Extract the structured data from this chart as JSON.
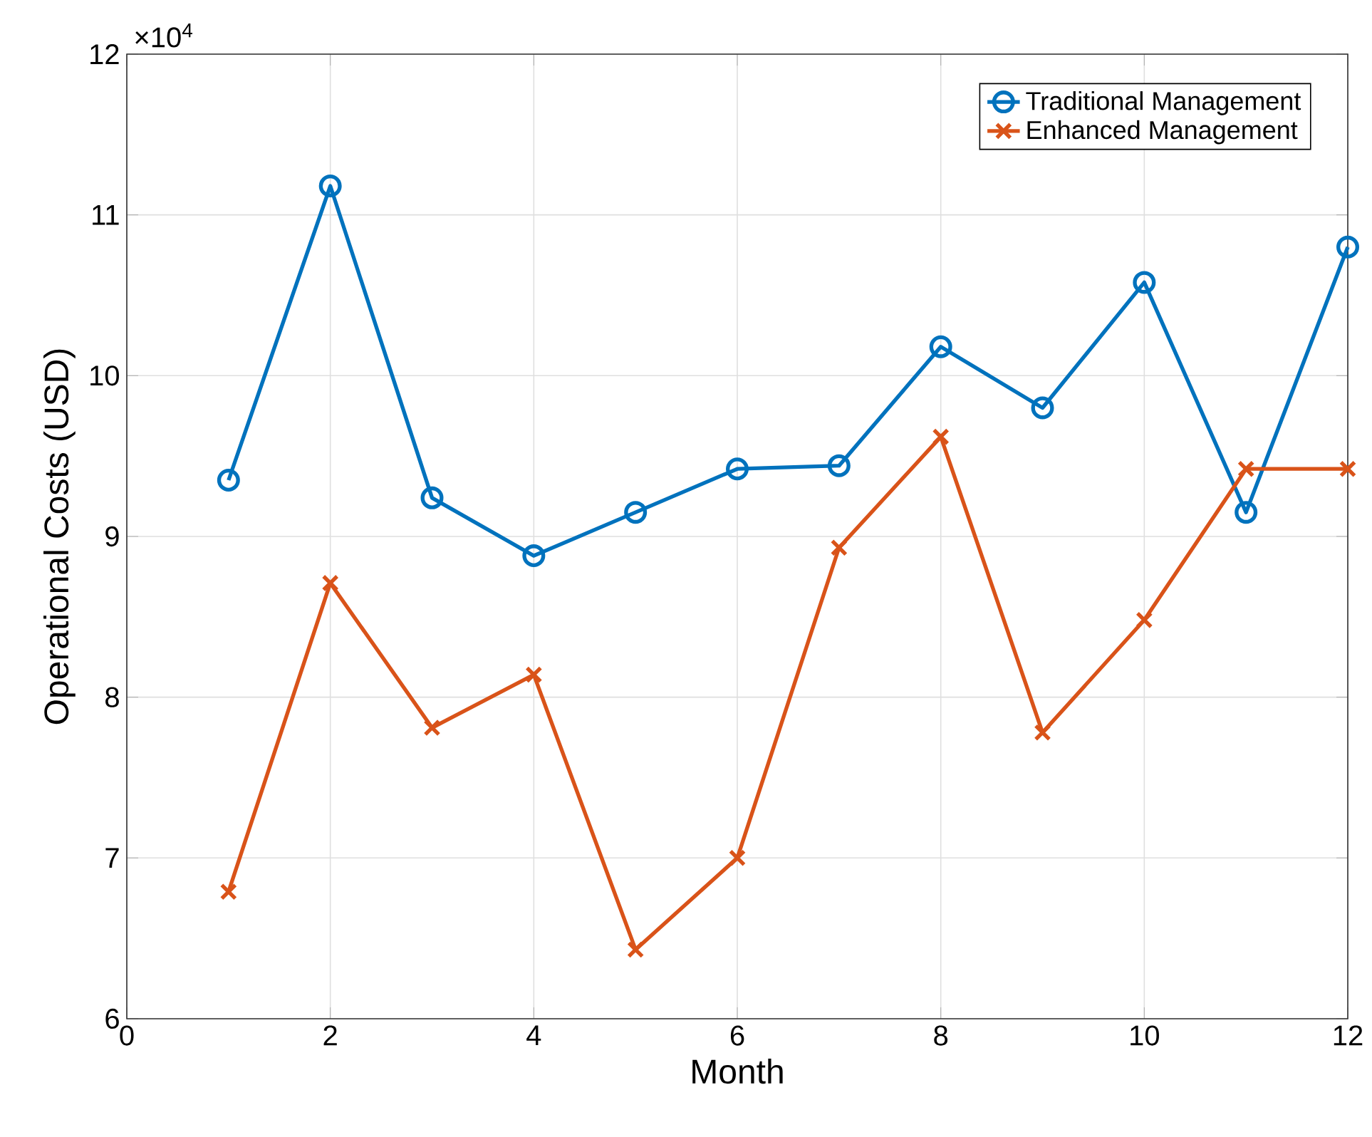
{
  "chart_data": {
    "type": "line",
    "xlabel": "Month",
    "ylabel": "Operational Costs (USD)",
    "x": [
      1,
      2,
      3,
      4,
      5,
      6,
      7,
      8,
      9,
      10,
      11,
      12
    ],
    "series": [
      {
        "name": "Traditional Management",
        "color": "#0072bd",
        "marker": "circle",
        "values": [
          9.35,
          11.18,
          9.24,
          8.88,
          9.15,
          9.42,
          9.44,
          10.18,
          9.8,
          10.58,
          9.15,
          10.8
        ]
      },
      {
        "name": "Enhanced Management",
        "color": "#d95319",
        "marker": "cross",
        "values": [
          6.79,
          8.71,
          7.81,
          8.14,
          6.43,
          7.0,
          8.93,
          9.62,
          7.78,
          8.48,
          9.42,
          9.42
        ]
      }
    ],
    "xlim": [
      0,
      12
    ],
    "xticks": [
      0,
      2,
      4,
      6,
      8,
      10,
      12
    ],
    "ylim": [
      6,
      12
    ],
    "yticks": [
      6,
      7,
      8,
      9,
      10,
      11,
      12
    ],
    "annotations": [
      "×10$^{4}$"
    ],
    "grid": true,
    "legend": "top right"
  }
}
